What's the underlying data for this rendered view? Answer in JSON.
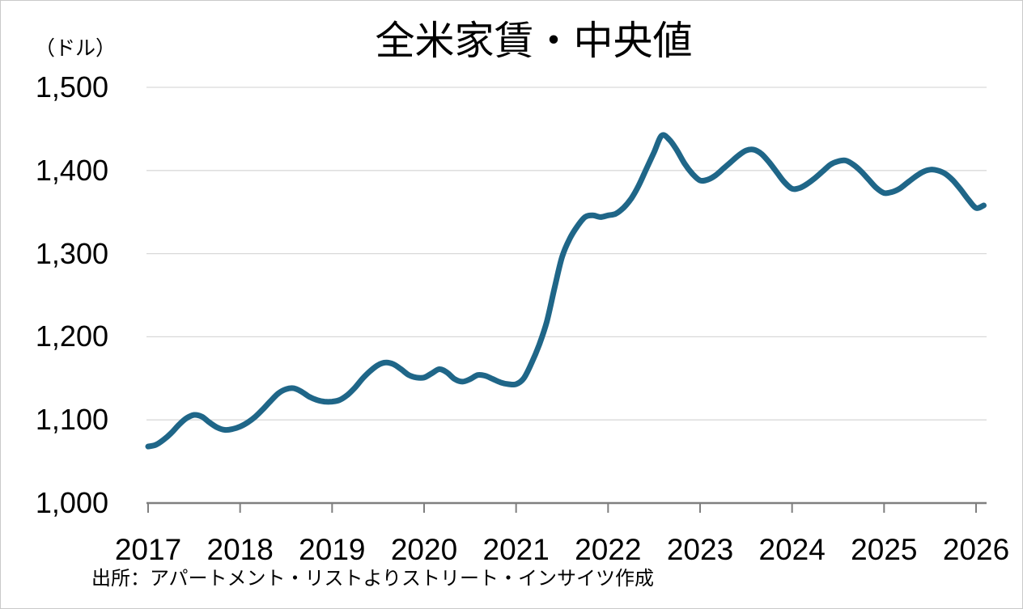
{
  "title": "全米家賃・中央値",
  "unit_label": "（ドル）",
  "source": "出所：アパートメント・リストよりストリート・インサイツ作成",
  "colors": {
    "line": "#1f6688",
    "gridline": "#d9d9d9",
    "axis": "#7f7f7f",
    "text": "#000000",
    "background": "#ffffff",
    "border": "#c9c9c9"
  },
  "chart_data": {
    "type": "line",
    "title": "全米家賃・中央値",
    "unit": "（ドル）",
    "frequency": "monthly",
    "x_start": "2017-01",
    "x_end": "2026-02",
    "x_tick_labels": [
      "2017",
      "2018",
      "2019",
      "2020",
      "2021",
      "2022",
      "2023",
      "2024",
      "2025",
      "2026"
    ],
    "y_tick_labels": [
      "1,000",
      "1,100",
      "1,200",
      "1,300",
      "1,400",
      "1,500"
    ],
    "ylim": [
      1000,
      1500
    ],
    "grid": "horizontal-only",
    "legend": "none",
    "series": [
      {
        "name": "全米家賃・中央値（ドル）",
        "values": [
          1068,
          1070,
          1076,
          1084,
          1094,
          1102,
          1106,
          1104,
          1097,
          1091,
          1088,
          1089,
          1092,
          1097,
          1104,
          1113,
          1123,
          1132,
          1137,
          1138,
          1134,
          1128,
          1124,
          1122,
          1122,
          1124,
          1130,
          1139,
          1150,
          1159,
          1166,
          1169,
          1167,
          1161,
          1154,
          1151,
          1151,
          1156,
          1161,
          1157,
          1149,
          1146,
          1149,
          1154,
          1153,
          1149,
          1145,
          1143,
          1143,
          1150,
          1168,
          1190,
          1218,
          1258,
          1296,
          1318,
          1333,
          1344,
          1346,
          1344,
          1346,
          1348,
          1355,
          1366,
          1382,
          1402,
          1422,
          1442,
          1437,
          1424,
          1408,
          1396,
          1388,
          1389,
          1394,
          1402,
          1410,
          1418,
          1424,
          1425,
          1420,
          1410,
          1398,
          1386,
          1378,
          1379,
          1384,
          1391,
          1399,
          1407,
          1411,
          1412,
          1407,
          1399,
          1389,
          1379,
          1373,
          1374,
          1378,
          1385,
          1392,
          1398,
          1401,
          1400,
          1396,
          1388,
          1377,
          1365,
          1355,
          1358
        ]
      }
    ]
  }
}
